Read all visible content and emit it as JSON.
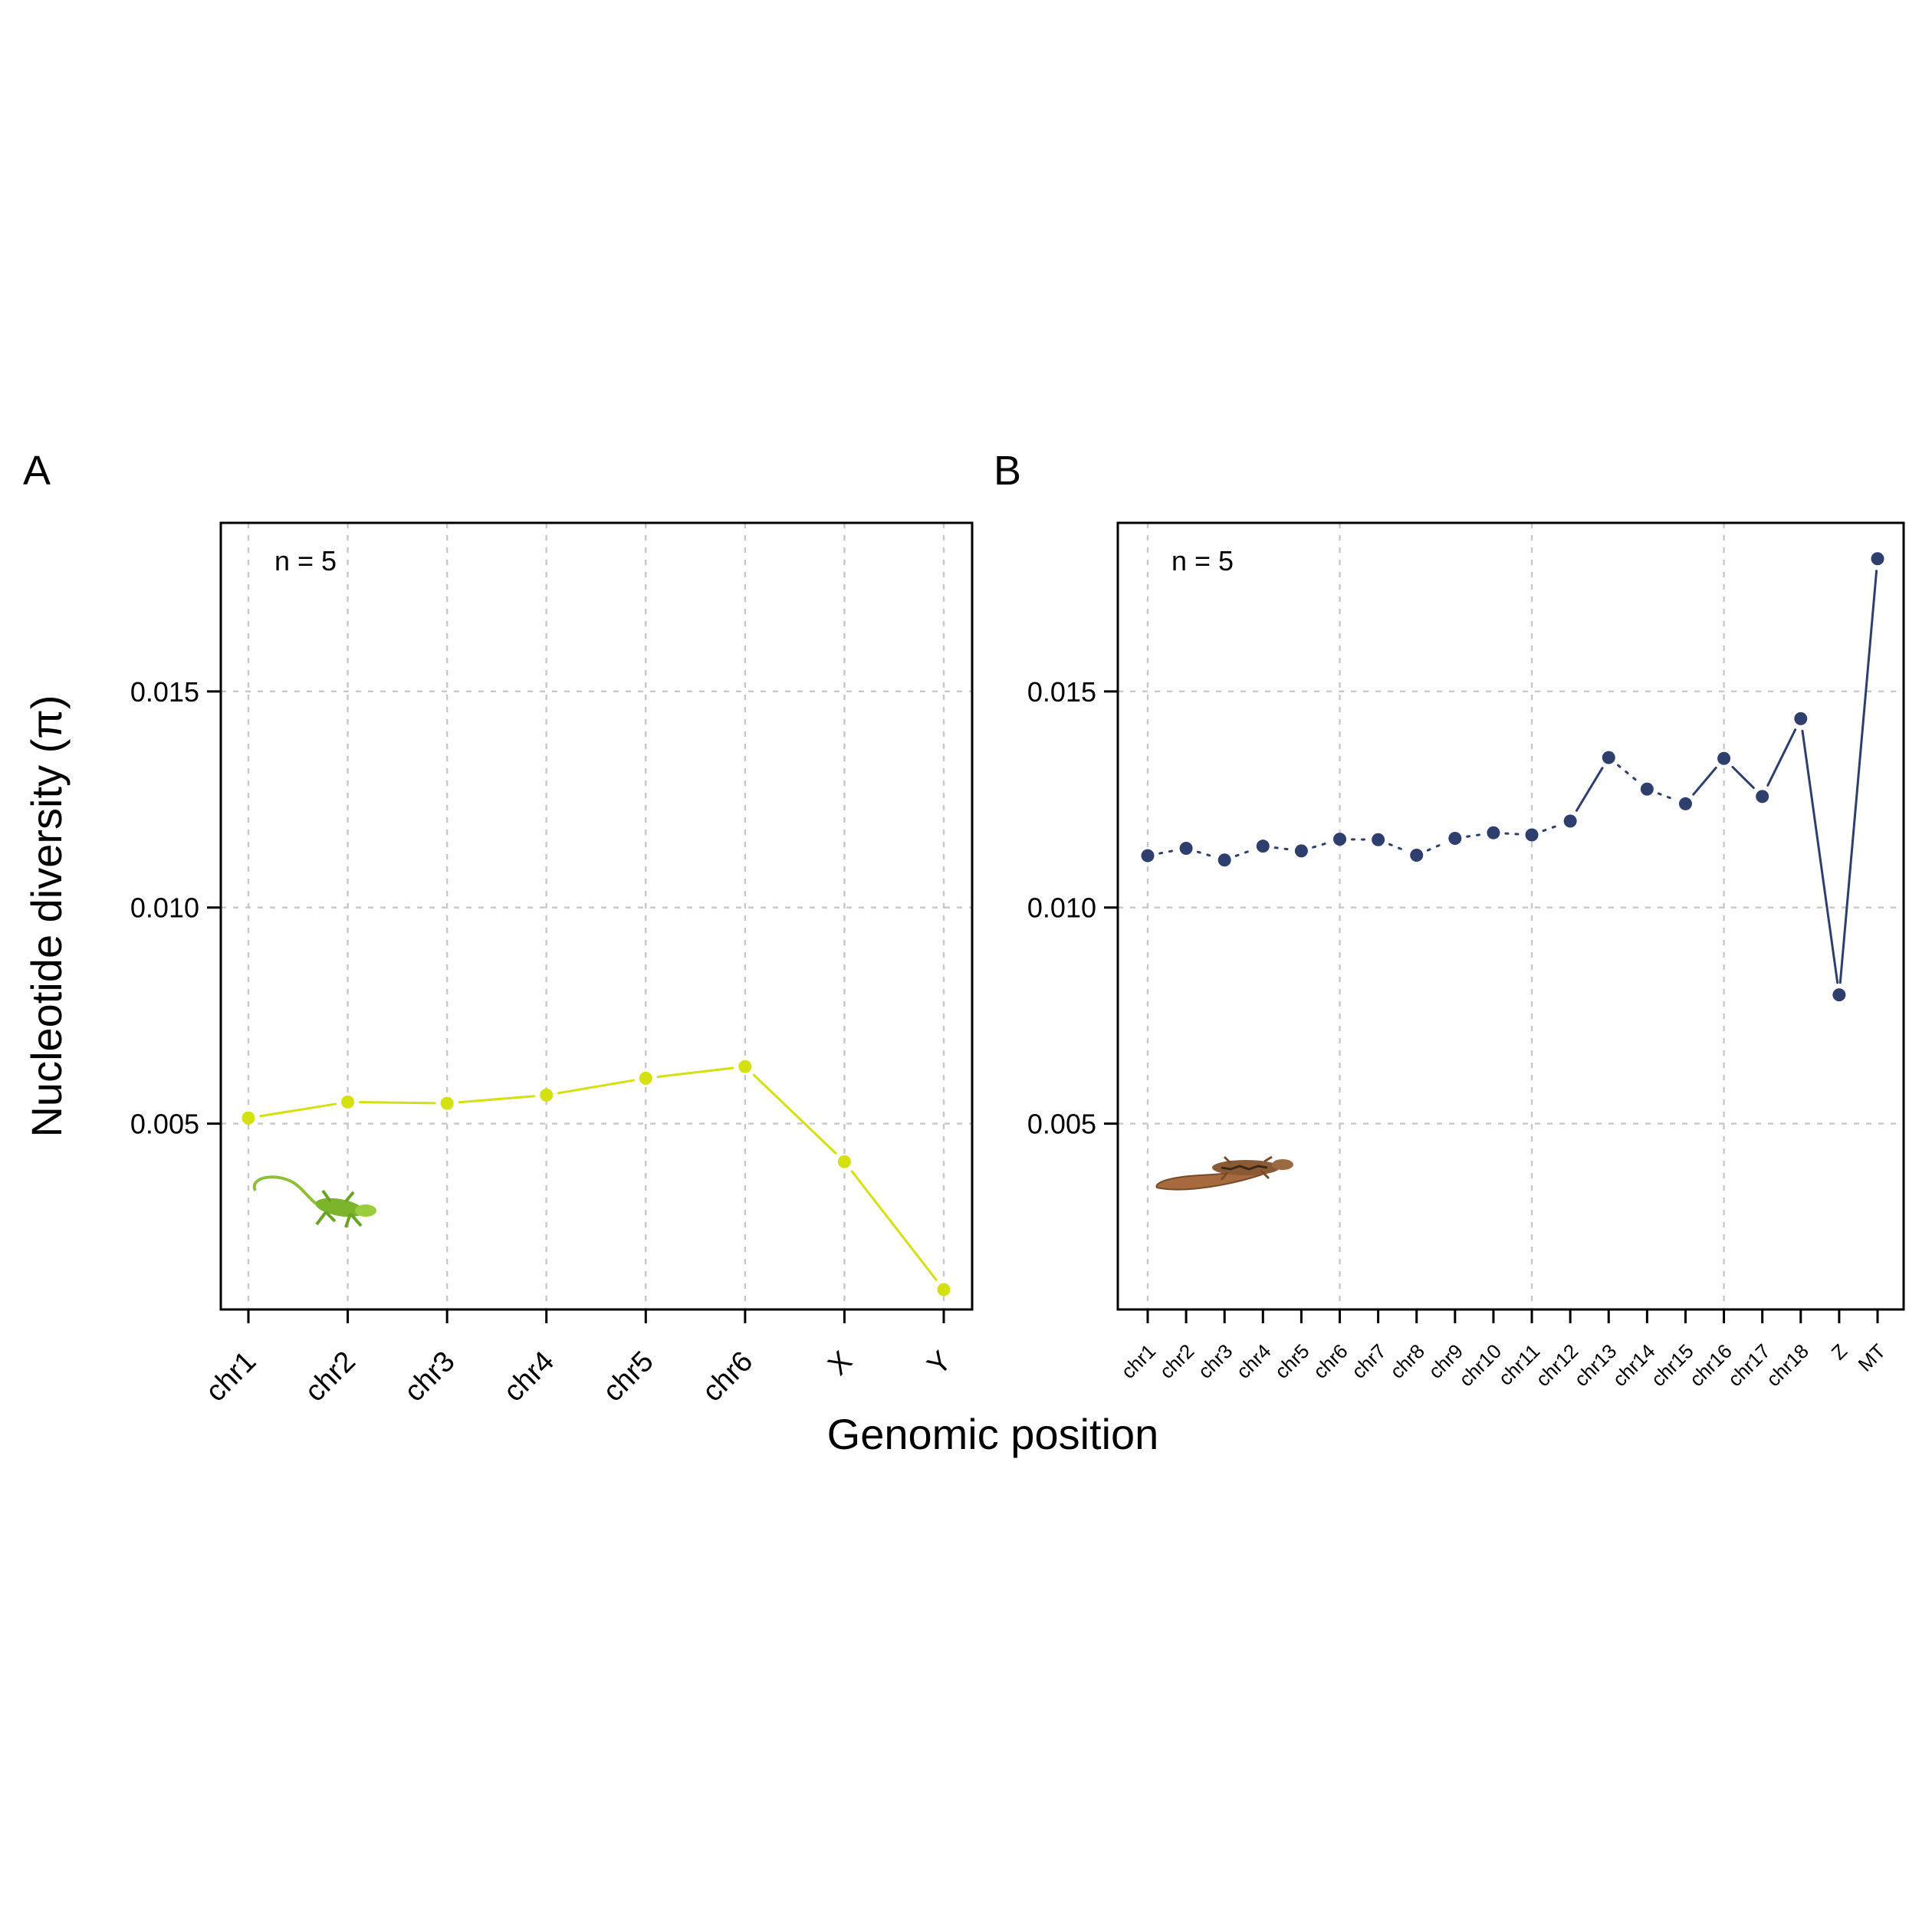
{
  "figure": {
    "ylabel": "Nucleotide diversity (π)",
    "xlabel": "Genomic position"
  },
  "chart_data": [
    {
      "type": "line",
      "panel": "A",
      "annotation": "n = 5",
      "color": "#d4e00f",
      "line_style": "solid",
      "categories": [
        "chr1",
        "chr2",
        "chr3",
        "chr4",
        "chr5",
        "chr6",
        "X",
        "Y"
      ],
      "values": [
        0.00513,
        0.0055,
        0.00547,
        0.00566,
        0.00605,
        0.00632,
        0.00412,
        0.00116
      ],
      "ylim": [
        0.0007,
        0.0189
      ],
      "yticks": [
        0.005,
        0.01,
        0.015
      ],
      "ytick_labels": [
        "0.005",
        "0.010",
        "0.015"
      ],
      "grid": true,
      "icon": "green-anole-lizard-icon"
    },
    {
      "type": "line",
      "panel": "B",
      "annotation": "n = 5",
      "color": "#2e3f6e",
      "line_style": "dotted-to-solid",
      "categories": [
        "chr1",
        "chr2",
        "chr3",
        "chr4",
        "chr5",
        "chr6",
        "chr7",
        "chr8",
        "chr9",
        "chr10",
        "chr11",
        "chr12",
        "chr13",
        "chr14",
        "chr15",
        "chr16",
        "chr17",
        "chr18",
        "Z",
        "MT"
      ],
      "values": [
        0.0112,
        0.01137,
        0.0111,
        0.01142,
        0.01131,
        0.01158,
        0.01157,
        0.01121,
        0.0116,
        0.01173,
        0.01168,
        0.012,
        0.01347,
        0.01274,
        0.0124,
        0.01345,
        0.01257,
        0.01437,
        0.00798,
        0.01807
      ],
      "ylim": [
        0.0007,
        0.0189
      ],
      "yticks": [
        0.005,
        0.01,
        0.015
      ],
      "ytick_labels": [
        "0.005",
        "0.010",
        "0.015"
      ],
      "grid": true,
      "icon": "brown-lizard-icon"
    }
  ]
}
